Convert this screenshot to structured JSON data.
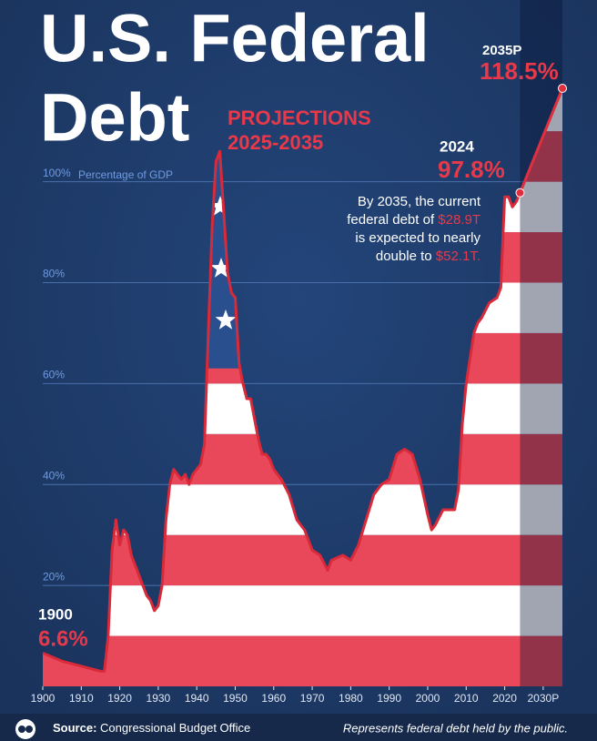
{
  "chart_data": {
    "type": "area",
    "title_lines": [
      "U.S. Federal",
      "Debt"
    ],
    "subtitle_lines": [
      "PROJECTIONS",
      "2025-2035"
    ],
    "y_axis_label": "Percentage of GDP",
    "xlim": [
      1900,
      2035
    ],
    "ylim": [
      0,
      136
    ],
    "xticks": [
      1900,
      1910,
      1920,
      1930,
      1940,
      1950,
      1960,
      1970,
      1980,
      1990,
      2000,
      2010,
      2020,
      {
        "value": 2030,
        "label": "2030P"
      }
    ],
    "yticks": [
      {
        "value": 20,
        "label": "20%"
      },
      {
        "value": 40,
        "label": "40%"
      },
      {
        "value": 60,
        "label": "60%"
      },
      {
        "value": 80,
        "label": "80%"
      },
      {
        "value": 100,
        "label": "100%"
      }
    ],
    "grid": true,
    "stripe_colors": [
      "#e8485a",
      "#ffffff"
    ],
    "canton_color": "#2a4f8e",
    "series": [
      {
        "color": "#d92a3a",
        "x": [
          1900,
          1905,
          1910,
          1915,
          1916,
          1917,
          1918,
          1919,
          1920,
          1921,
          1922,
          1923,
          1924,
          1925,
          1926,
          1927,
          1928,
          1929,
          1930,
          1931,
          1932,
          1933,
          1934,
          1935,
          1936,
          1937,
          1938,
          1939,
          1940,
          1941,
          1942,
          1943,
          1944,
          1945,
          1946,
          1947,
          1948,
          1949,
          1950,
          1951,
          1952,
          1953,
          1954,
          1955,
          1956,
          1957,
          1958,
          1959,
          1960,
          1962,
          1964,
          1966,
          1968,
          1970,
          1972,
          1974,
          1975,
          1978,
          1980,
          1982,
          1984,
          1986,
          1988,
          1990,
          1992,
          1994,
          1996,
          1998,
          2000,
          2001,
          2002,
          2004,
          2006,
          2007,
          2008,
          2009,
          2010,
          2011,
          2012,
          2013,
          2014,
          2016,
          2018,
          2019,
          2020,
          2021,
          2022,
          2023,
          2024
        ],
        "values": [
          6.6,
          5,
          4,
          3,
          3,
          10,
          27,
          33,
          28,
          31,
          30,
          26,
          24,
          22,
          20,
          18,
          17,
          15,
          16,
          20,
          33,
          40,
          43,
          42,
          41,
          42,
          40,
          42,
          43,
          44,
          48,
          70,
          91,
          104,
          106,
          94,
          82,
          78,
          77,
          64,
          60,
          57,
          57,
          53,
          49,
          46,
          46,
          45,
          43,
          41,
          38,
          33,
          31,
          27,
          26,
          23,
          25,
          26,
          25,
          28,
          33,
          38,
          40,
          41,
          46,
          47,
          46,
          41,
          34,
          31,
          32,
          35,
          35,
          35,
          39,
          52,
          60,
          65,
          70,
          72,
          73,
          76,
          77,
          79,
          97,
          97,
          95,
          96,
          97.8
        ]
      },
      {
        "color": "#e0303f",
        "projection": true,
        "x": [
          2024,
          2035
        ],
        "values": [
          97.8,
          118.5
        ]
      }
    ],
    "annotations": {
      "start_year": "1900",
      "start_value": "6.6%",
      "last_year": "2024",
      "last_value": "97.8%",
      "end_year": "2035P",
      "end_value": "118.5%",
      "note": [
        "By 2035, the current",
        "federal debt of",
        "$28.9T",
        "is expected to nearly",
        "double to",
        "$52.1T."
      ]
    },
    "footer": {
      "source_label": "Source:",
      "source": "Congressional Budget Office",
      "note": "Represents federal debt held by the public."
    }
  }
}
